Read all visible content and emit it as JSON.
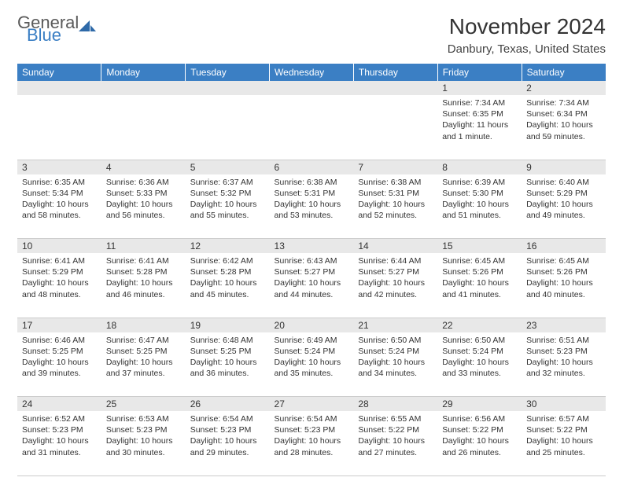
{
  "logo": {
    "text1": "General",
    "text2": "Blue"
  },
  "title": "November 2024",
  "location": "Danbury, Texas, United States",
  "colors": {
    "header_bg": "#3b7fc4",
    "header_fg": "#ffffff",
    "daynum_bg": "#e8e8e8",
    "border": "#cccccc",
    "text": "#333333"
  },
  "weekdays": [
    "Sunday",
    "Monday",
    "Tuesday",
    "Wednesday",
    "Thursday",
    "Friday",
    "Saturday"
  ],
  "weeks": [
    [
      null,
      null,
      null,
      null,
      null,
      {
        "n": "1",
        "sr": "7:34 AM",
        "ss": "6:35 PM",
        "dl": "11 hours and 1 minute."
      },
      {
        "n": "2",
        "sr": "7:34 AM",
        "ss": "6:34 PM",
        "dl": "10 hours and 59 minutes."
      }
    ],
    [
      {
        "n": "3",
        "sr": "6:35 AM",
        "ss": "5:34 PM",
        "dl": "10 hours and 58 minutes."
      },
      {
        "n": "4",
        "sr": "6:36 AM",
        "ss": "5:33 PM",
        "dl": "10 hours and 56 minutes."
      },
      {
        "n": "5",
        "sr": "6:37 AM",
        "ss": "5:32 PM",
        "dl": "10 hours and 55 minutes."
      },
      {
        "n": "6",
        "sr": "6:38 AM",
        "ss": "5:31 PM",
        "dl": "10 hours and 53 minutes."
      },
      {
        "n": "7",
        "sr": "6:38 AM",
        "ss": "5:31 PM",
        "dl": "10 hours and 52 minutes."
      },
      {
        "n": "8",
        "sr": "6:39 AM",
        "ss": "5:30 PM",
        "dl": "10 hours and 51 minutes."
      },
      {
        "n": "9",
        "sr": "6:40 AM",
        "ss": "5:29 PM",
        "dl": "10 hours and 49 minutes."
      }
    ],
    [
      {
        "n": "10",
        "sr": "6:41 AM",
        "ss": "5:29 PM",
        "dl": "10 hours and 48 minutes."
      },
      {
        "n": "11",
        "sr": "6:41 AM",
        "ss": "5:28 PM",
        "dl": "10 hours and 46 minutes."
      },
      {
        "n": "12",
        "sr": "6:42 AM",
        "ss": "5:28 PM",
        "dl": "10 hours and 45 minutes."
      },
      {
        "n": "13",
        "sr": "6:43 AM",
        "ss": "5:27 PM",
        "dl": "10 hours and 44 minutes."
      },
      {
        "n": "14",
        "sr": "6:44 AM",
        "ss": "5:27 PM",
        "dl": "10 hours and 42 minutes."
      },
      {
        "n": "15",
        "sr": "6:45 AM",
        "ss": "5:26 PM",
        "dl": "10 hours and 41 minutes."
      },
      {
        "n": "16",
        "sr": "6:45 AM",
        "ss": "5:26 PM",
        "dl": "10 hours and 40 minutes."
      }
    ],
    [
      {
        "n": "17",
        "sr": "6:46 AM",
        "ss": "5:25 PM",
        "dl": "10 hours and 39 minutes."
      },
      {
        "n": "18",
        "sr": "6:47 AM",
        "ss": "5:25 PM",
        "dl": "10 hours and 37 minutes."
      },
      {
        "n": "19",
        "sr": "6:48 AM",
        "ss": "5:25 PM",
        "dl": "10 hours and 36 minutes."
      },
      {
        "n": "20",
        "sr": "6:49 AM",
        "ss": "5:24 PM",
        "dl": "10 hours and 35 minutes."
      },
      {
        "n": "21",
        "sr": "6:50 AM",
        "ss": "5:24 PM",
        "dl": "10 hours and 34 minutes."
      },
      {
        "n": "22",
        "sr": "6:50 AM",
        "ss": "5:24 PM",
        "dl": "10 hours and 33 minutes."
      },
      {
        "n": "23",
        "sr": "6:51 AM",
        "ss": "5:23 PM",
        "dl": "10 hours and 32 minutes."
      }
    ],
    [
      {
        "n": "24",
        "sr": "6:52 AM",
        "ss": "5:23 PM",
        "dl": "10 hours and 31 minutes."
      },
      {
        "n": "25",
        "sr": "6:53 AM",
        "ss": "5:23 PM",
        "dl": "10 hours and 30 minutes."
      },
      {
        "n": "26",
        "sr": "6:54 AM",
        "ss": "5:23 PM",
        "dl": "10 hours and 29 minutes."
      },
      {
        "n": "27",
        "sr": "6:54 AM",
        "ss": "5:23 PM",
        "dl": "10 hours and 28 minutes."
      },
      {
        "n": "28",
        "sr": "6:55 AM",
        "ss": "5:22 PM",
        "dl": "10 hours and 27 minutes."
      },
      {
        "n": "29",
        "sr": "6:56 AM",
        "ss": "5:22 PM",
        "dl": "10 hours and 26 minutes."
      },
      {
        "n": "30",
        "sr": "6:57 AM",
        "ss": "5:22 PM",
        "dl": "10 hours and 25 minutes."
      }
    ]
  ]
}
